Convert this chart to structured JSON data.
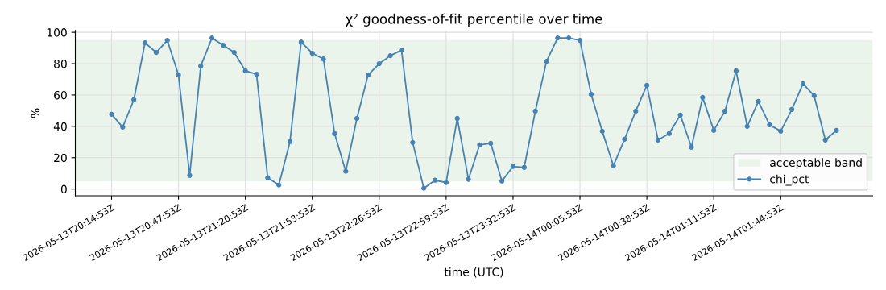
{
  "chart_data": {
    "type": "line",
    "title": "χ² goodness-of-fit percentile over time",
    "xlabel": "time (UTC)",
    "ylabel": "%",
    "categories": [
      "2026-05-13T20:14:53Z",
      null,
      null,
      null,
      null,
      null,
      "2026-05-13T20:47:53Z",
      null,
      null,
      null,
      null,
      null,
      "2026-05-13T21:20:53Z",
      null,
      null,
      null,
      null,
      null,
      "2026-05-13T21:53:53Z",
      null,
      null,
      null,
      null,
      null,
      "2026-05-13T22:26:53Z",
      null,
      null,
      null,
      null,
      null,
      "2026-05-13T22:59:53Z",
      null,
      null,
      null,
      null,
      null,
      "2026-05-13T23:32:53Z",
      null,
      null,
      null,
      null,
      null,
      "2026-05-14T00:05:53Z",
      null,
      null,
      null,
      null,
      null,
      "2026-05-14T00:38:53Z",
      null,
      null,
      null,
      null,
      null,
      "2026-05-14T01:11:53Z",
      null,
      null,
      null,
      null,
      null,
      "2026-05-14T01:44:53Z",
      null,
      null,
      null,
      null,
      null
    ],
    "series": [
      {
        "name": "chi_pct",
        "color": "#4682b4",
        "values": [
          47.7,
          39.5,
          57,
          93.3,
          87.2,
          94.9,
          72.8,
          8.7,
          78.5,
          96.4,
          91.8,
          87.2,
          75.4,
          73.3,
          7.2,
          2.6,
          30.3,
          93.8,
          86.7,
          83,
          35.4,
          11.3,
          45.1,
          72.8,
          80,
          85.1,
          88.7,
          29.7,
          0.5,
          5.6,
          4.1,
          45.1,
          6.2,
          28.2,
          29.2,
          5.1,
          14.4,
          13.8,
          49.7,
          81.5,
          96.4,
          96.4,
          94.9,
          60.5,
          36.9,
          14.9,
          31.8,
          49.7,
          66.2,
          31.3,
          35.4,
          47.2,
          26.7,
          58.5,
          37.4,
          49.7,
          75.4,
          40,
          55.9,
          41,
          36.9,
          50.8,
          67.2,
          59.5,
          31.3,
          37.4
        ]
      }
    ],
    "bands": [
      {
        "axis": "y",
        "from": 5,
        "to": 95,
        "label": "acceptable band",
        "color": "#ebf4eb"
      }
    ],
    "ylim": [
      -4.3,
      101.2
    ],
    "yticks": [
      0,
      20,
      40,
      60,
      80,
      100
    ],
    "grid": true,
    "legend": "lower right",
    "marker": "circle",
    "line_style": "solid"
  }
}
